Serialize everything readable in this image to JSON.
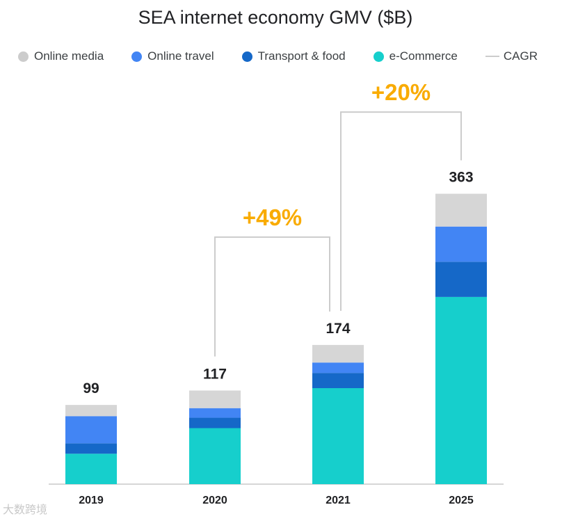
{
  "chart_data": {
    "type": "bar",
    "stacked": true,
    "title": "SEA internet economy GMV ($B)",
    "categories": [
      "2019",
      "2020",
      "2021",
      "2025"
    ],
    "totals": [
      99,
      117,
      174,
      363
    ],
    "series": [
      {
        "name": "e-Commerce",
        "color": "#16cfcc",
        "values": [
          38,
          70,
          120,
          234
        ]
      },
      {
        "name": "Transport & food",
        "color": "#1568c8",
        "values": [
          13,
          13,
          19,
          44
        ]
      },
      {
        "name": "Online travel",
        "color": "#4285f4",
        "values": [
          34,
          12,
          13,
          44
        ]
      },
      {
        "name": "Online media",
        "color": "#d6d6d6",
        "values": [
          14,
          22,
          22,
          41
        ]
      }
    ],
    "cagr": [
      {
        "from": "2020",
        "to": "2021",
        "label": "+49%"
      },
      {
        "from": "2021",
        "to": "2025",
        "label": "+20%"
      }
    ],
    "cagr_color": "#f9ab00",
    "bracket_color": "#cccccc",
    "legend": [
      {
        "label": "Online media",
        "color": "#cccccc",
        "shape": "dot"
      },
      {
        "label": "Online travel",
        "color": "#4285f4",
        "shape": "dot"
      },
      {
        "label": "Transport & food",
        "color": "#1568c8",
        "shape": "dot"
      },
      {
        "label": "e-Commerce",
        "color": "#16cfcc",
        "shape": "dot"
      },
      {
        "label": "CAGR",
        "color": "#cccccc",
        "shape": "line"
      }
    ],
    "legend_position": "top",
    "ylim": [
      0,
      400
    ],
    "grid": false
  },
  "watermark": "大数跨境"
}
